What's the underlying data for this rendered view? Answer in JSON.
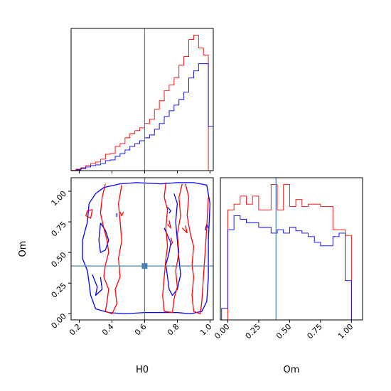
{
  "chart_data": [
    {
      "id": "hist_h0",
      "type": "histogram",
      "x_range": [
        0.15,
        1.02
      ],
      "truth": 0.6,
      "bins": [
        0.15,
        0.18,
        0.21,
        0.24,
        0.27,
        0.3,
        0.33,
        0.36,
        0.39,
        0.42,
        0.45,
        0.48,
        0.51,
        0.54,
        0.57,
        0.6,
        0.63,
        0.66,
        0.69,
        0.72,
        0.75,
        0.78,
        0.81,
        0.84,
        0.87,
        0.9,
        0.93,
        0.96,
        0.99,
        1.02
      ],
      "series": [
        {
          "color": "#ff0000",
          "values": [
            0.2,
            1.0,
            2.0,
            3.5,
            5.0,
            6.0,
            8.0,
            11.5,
            12.0,
            17.0,
            19.0,
            23.0,
            26.0,
            28.0,
            30.0,
            33.0,
            36.0,
            43.0,
            49.0,
            56.0,
            60.0,
            65.0,
            74.0,
            80.0,
            92.0,
            95.0,
            86.0,
            81.0,
            0.0
          ]
        },
        {
          "color": "#0000ff",
          "values": [
            0.0,
            0.5,
            1.5,
            2.5,
            3.5,
            4.0,
            5.0,
            7.0,
            7.5,
            10.0,
            12.0,
            14.5,
            17.0,
            19.0,
            21.0,
            23.0,
            25.0,
            29.0,
            33.0,
            38.0,
            42.0,
            46.0,
            50.0,
            55.0,
            65.0,
            70.0,
            75.0,
            75.0,
            31.0
          ]
        }
      ]
    },
    {
      "id": "hist_om",
      "type": "histogram",
      "x_range": [
        -0.06,
        1.09
      ],
      "xlabel": "Om",
      "xticks": [
        "0.00",
        "0.25",
        "0.50",
        "0.75",
        "1.00"
      ],
      "xtick_values": [
        0.0,
        0.25,
        0.5,
        0.75,
        1.0
      ],
      "truth": 0.39,
      "bins": [
        -0.05,
        0.0,
        0.05,
        0.1,
        0.15,
        0.2,
        0.25,
        0.3,
        0.35,
        0.4,
        0.45,
        0.5,
        0.55,
        0.6,
        0.65,
        0.7,
        0.75,
        0.8,
        0.85,
        0.9,
        0.95,
        1.0,
        1.05
      ],
      "series": [
        {
          "color": "#ff0000",
          "values": [
            0.0,
            95.0,
            100.0,
            107.0,
            100.0,
            107.0,
            95.0,
            95.0,
            117.0,
            95.0,
            117.0,
            98.0,
            104.0,
            98.0,
            100.0,
            100.0,
            98.0,
            98.0,
            78.0,
            78.0,
            73.0,
            0.0
          ]
        },
        {
          "color": "#0000ff",
          "values": [
            10.0,
            78.0,
            90.0,
            87.0,
            84.0,
            84.0,
            80.0,
            80.0,
            75.0,
            78.0,
            75.0,
            80.0,
            77.0,
            75.0,
            72.0,
            67.0,
            64.0,
            64.0,
            72.0,
            75.0,
            34.0,
            0.0
          ]
        }
      ]
    },
    {
      "id": "contour",
      "type": "contour",
      "xlabel": "H0",
      "ylabel": "Om",
      "xlim": [
        0.15,
        1.02
      ],
      "ylim": [
        -0.05,
        1.11
      ],
      "xticks": [
        "0.2",
        "0.4",
        "0.6",
        "0.8",
        "1.0"
      ],
      "xtick_values": [
        0.2,
        0.4,
        0.6,
        0.8,
        1.0
      ],
      "yticks": [
        "0.00",
        "0.25",
        "0.50",
        "0.75",
        "1.00"
      ],
      "ytick_values": [
        0.0,
        0.25,
        0.5,
        0.75,
        1.0
      ],
      "truth": [
        0.6,
        0.39
      ],
      "contours": [
        {
          "color": "#0000ff",
          "closed": true,
          "points": [
            [
              0.22,
              0.6
            ],
            [
              0.25,
              0.75
            ],
            [
              0.26,
              0.9
            ],
            [
              0.3,
              0.98
            ],
            [
              0.35,
              1.03
            ],
            [
              0.45,
              1.06
            ],
            [
              0.55,
              1.07
            ],
            [
              0.7,
              1.06
            ],
            [
              0.8,
              1.07
            ],
            [
              0.9,
              1.07
            ],
            [
              0.98,
              1.05
            ],
            [
              1.0,
              0.9
            ],
            [
              0.99,
              0.6
            ],
            [
              0.99,
              0.3
            ],
            [
              0.98,
              0.1
            ],
            [
              0.95,
              0.02
            ],
            [
              0.88,
              0.0
            ],
            [
              0.8,
              0.01
            ],
            [
              0.72,
              0.01
            ],
            [
              0.6,
              0.01
            ],
            [
              0.48,
              0.0
            ],
            [
              0.38,
              0.01
            ],
            [
              0.3,
              0.04
            ],
            [
              0.27,
              0.15
            ],
            [
              0.25,
              0.35
            ],
            [
              0.22,
              0.45
            ]
          ]
        },
        {
          "color": "#0000ff",
          "closed": false,
          "points": [
            [
              0.33,
              0.74
            ],
            [
              0.36,
              0.68
            ],
            [
              0.38,
              0.6
            ],
            [
              0.36,
              0.52
            ],
            [
              0.33,
              0.5
            ],
            [
              0.32,
              0.6
            ],
            [
              0.33,
              0.74
            ]
          ]
        },
        {
          "color": "#0000ff",
          "closed": false,
          "points": [
            [
              0.28,
              0.32
            ],
            [
              0.31,
              0.22
            ],
            [
              0.3,
              0.15
            ],
            [
              0.34,
              0.2
            ],
            [
              0.33,
              0.3
            ]
          ]
        },
        {
          "color": "#0000ff",
          "closed": false,
          "points": [
            [
              0.72,
              0.7
            ],
            [
              0.74,
              0.64
            ],
            [
              0.76,
              0.58
            ],
            [
              0.75,
              0.5
            ],
            [
              0.73,
              0.4
            ],
            [
              0.74,
              0.3
            ],
            [
              0.75,
              0.2
            ],
            [
              0.77,
              0.15
            ],
            [
              0.8,
              0.2
            ],
            [
              0.82,
              0.32
            ],
            [
              0.81,
              0.45
            ],
            [
              0.8,
              0.6
            ],
            [
              0.79,
              0.75
            ],
            [
              0.8,
              0.9
            ],
            [
              0.78,
              0.98
            ]
          ]
        },
        {
          "color": "#0000ff",
          "closed": false,
          "points": [
            [
              0.74,
              0.87
            ],
            [
              0.76,
              0.84
            ],
            [
              0.75,
              0.82
            ]
          ]
        },
        {
          "color": "#0000ff",
          "closed": false,
          "points": [
            [
              0.97,
              0.68
            ],
            [
              0.98,
              0.73
            ],
            [
              0.99,
              0.7
            ]
          ]
        },
        {
          "color": "#0000ff",
          "closed": false,
          "points": [
            [
              0.43,
              0.82
            ],
            [
              0.43,
              0.79
            ]
          ]
        },
        {
          "color": "#0000ff",
          "closed": false,
          "points": [
            [
              0.77,
              0.39
            ],
            [
              0.79,
              0.39
            ]
          ]
        },
        {
          "color": "#ff0000",
          "closed": false,
          "points": [
            [
              0.36,
              1.06
            ],
            [
              0.34,
              0.95
            ],
            [
              0.33,
              0.82
            ],
            [
              0.35,
              0.7
            ],
            [
              0.37,
              0.6
            ],
            [
              0.38,
              0.5
            ],
            [
              0.36,
              0.4
            ],
            [
              0.35,
              0.3
            ],
            [
              0.38,
              0.2
            ],
            [
              0.37,
              0.1
            ],
            [
              0.36,
              0.02
            ],
            [
              0.4,
              0.0
            ],
            [
              0.43,
              0.08
            ],
            [
              0.42,
              0.2
            ],
            [
              0.45,
              0.3
            ],
            [
              0.44,
              0.45
            ],
            [
              0.46,
              0.6
            ],
            [
              0.45,
              0.75
            ],
            [
              0.44,
              0.9
            ],
            [
              0.46,
              1.05
            ]
          ]
        },
        {
          "color": "#ff0000",
          "closed": false,
          "points": [
            [
              0.73,
              1.07
            ],
            [
              0.72,
              0.95
            ],
            [
              0.74,
              0.85
            ],
            [
              0.73,
              0.7
            ],
            [
              0.74,
              0.55
            ],
            [
              0.73,
              0.45
            ],
            [
              0.72,
              0.3
            ],
            [
              0.71,
              0.15
            ],
            [
              0.72,
              0.02
            ],
            [
              0.77,
              0.01
            ],
            [
              0.78,
              0.12
            ],
            [
              0.8,
              0.22
            ],
            [
              0.79,
              0.35
            ],
            [
              0.81,
              0.5
            ],
            [
              0.8,
              0.65
            ],
            [
              0.82,
              0.8
            ],
            [
              0.81,
              0.95
            ],
            [
              0.83,
              1.06
            ]
          ]
        },
        {
          "color": "#ff0000",
          "closed": false,
          "points": [
            [
              0.85,
              1.06
            ],
            [
              0.87,
              0.95
            ],
            [
              0.86,
              0.8
            ],
            [
              0.88,
              0.65
            ],
            [
              0.9,
              0.55
            ],
            [
              0.89,
              0.4
            ],
            [
              0.9,
              0.3
            ],
            [
              0.89,
              0.15
            ],
            [
              0.9,
              0.02
            ],
            [
              0.94,
              0.0
            ],
            [
              0.95,
              0.1
            ],
            [
              0.96,
              0.3
            ],
            [
              0.97,
              0.5
            ],
            [
              0.98,
              0.7
            ],
            [
              0.99,
              0.95
            ]
          ]
        },
        {
          "color": "#ff0000",
          "closed": false,
          "points": [
            [
              0.24,
              0.8
            ],
            [
              0.27,
              0.78
            ],
            [
              0.28,
              0.85
            ],
            [
              0.25,
              0.84
            ],
            [
              0.24,
              0.8
            ]
          ]
        },
        {
          "color": "#ff0000",
          "closed": false,
          "points": [
            [
              0.45,
              0.83
            ],
            [
              0.46,
              0.8
            ],
            [
              0.47,
              0.83
            ]
          ]
        },
        {
          "color": "#ff0000",
          "closed": false,
          "points": [
            [
              0.74,
              0.73
            ],
            [
              0.76,
              0.7
            ],
            [
              0.75,
              0.76
            ]
          ]
        },
        {
          "color": "#ff0000",
          "closed": false,
          "points": [
            [
              0.83,
              0.7
            ],
            [
              0.86,
              0.66
            ],
            [
              0.85,
              0.72
            ]
          ]
        },
        {
          "color": "#ff0000",
          "closed": false,
          "points": [
            [
              0.76,
              0.62
            ],
            [
              0.77,
              0.58
            ],
            [
              0.76,
              0.56
            ]
          ]
        }
      ]
    }
  ]
}
